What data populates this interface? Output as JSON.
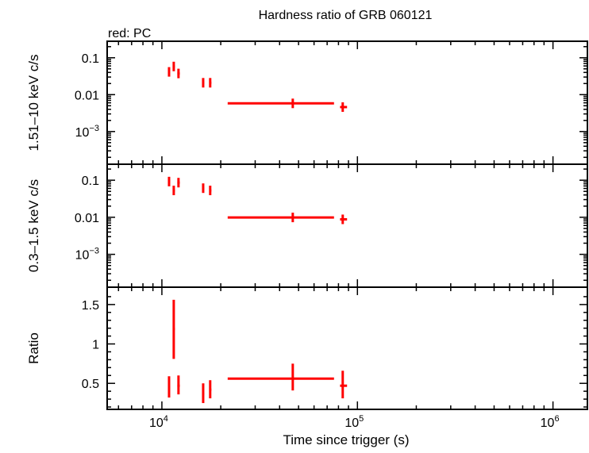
{
  "title": "Hardness ratio of GRB 060121",
  "legend_note": "red: PC",
  "xlabel": "Time since trigger (s)",
  "colors": {
    "series": "#ff0000",
    "axes": "#000000"
  },
  "chart_data": [
    {
      "type": "scatter",
      "panel": "top",
      "ylabel": "1.51–10 keV c/s",
      "xscale": "log",
      "yscale": "log",
      "xlim": [
        5250,
        1500000
      ],
      "ylim": [
        0.00013,
        0.28
      ],
      "yticks": [
        {
          "v": 0.1,
          "label": "0.1"
        },
        {
          "v": 0.01,
          "label": "0.01"
        },
        {
          "v": 0.001,
          "label": "10",
          "sup": "−3"
        }
      ],
      "series": [
        {
          "x": [
            10880,
            11500,
            12160,
            16260,
            17660,
            46700,
            84100
          ],
          "xerr_lo": [
            10750,
            11380,
            12000,
            16050,
            17450,
            21700,
            81500
          ],
          "xerr_hi": [
            11000,
            11650,
            12350,
            16450,
            17900,
            75900,
            88500
          ],
          "y": [
            0.0414,
            0.058,
            0.0375,
            0.021,
            0.021,
            0.0058,
            0.0046
          ]
        }
      ]
    },
    {
      "type": "scatter",
      "panel": "middle",
      "ylabel": "0.3–1.5 keV c/s",
      "xscale": "log",
      "yscale": "log",
      "xlim": [
        5250,
        1500000
      ],
      "ylim": [
        0.00013,
        0.27
      ],
      "yticks": [
        {
          "v": 0.1,
          "label": "0.1"
        },
        {
          "v": 0.01,
          "label": "0.01"
        },
        {
          "v": 0.001,
          "label": "10",
          "sup": "−3"
        }
      ],
      "series": [
        {
          "x": [
            10880,
            11500,
            12160,
            16260,
            17660,
            46700,
            84100
          ],
          "xerr_lo": [
            10750,
            11380,
            12000,
            16050,
            17450,
            21700,
            81500
          ],
          "xerr_hi": [
            11000,
            11650,
            12350,
            16450,
            17900,
            75900,
            88500
          ],
          "y": [
            0.092,
            0.053,
            0.086,
            0.061,
            0.053,
            0.0099,
            0.0088
          ]
        }
      ]
    },
    {
      "type": "scatter",
      "panel": "bottom",
      "ylabel": "Ratio",
      "xscale": "log",
      "yscale": "linear",
      "xlim": [
        5250,
        1500000
      ],
      "ylim": [
        0.17,
        1.72
      ],
      "yticks": [
        {
          "v": 0.5,
          "label": "0.5"
        },
        {
          "v": 1,
          "label": "1"
        },
        {
          "v": 1.5,
          "label": "1.5"
        }
      ],
      "xticks": [
        {
          "v": 10000,
          "label": "10",
          "sup": "4"
        },
        {
          "v": 100000,
          "label": "10",
          "sup": "5"
        },
        {
          "v": 1000000,
          "label": "10",
          "sup": "6"
        }
      ],
      "series": [
        {
          "x": [
            10880,
            11500,
            12160,
            16260,
            17660,
            46700,
            84100
          ],
          "xerr_lo": [
            10750,
            11380,
            12000,
            16050,
            17450,
            21700,
            81500
          ],
          "xerr_hi": [
            11000,
            11650,
            12350,
            16450,
            17900,
            75900,
            88500
          ],
          "y": [
            0.45,
            1.19,
            0.47,
            0.37,
            0.42,
            0.56,
            0.47
          ],
          "yerr_lo": [
            0.32,
            0.81,
            0.36,
            0.25,
            0.31,
            0.41,
            0.31
          ],
          "yerr_hi": [
            0.59,
            1.56,
            0.6,
            0.5,
            0.54,
            0.75,
            0.66
          ]
        }
      ]
    }
  ]
}
